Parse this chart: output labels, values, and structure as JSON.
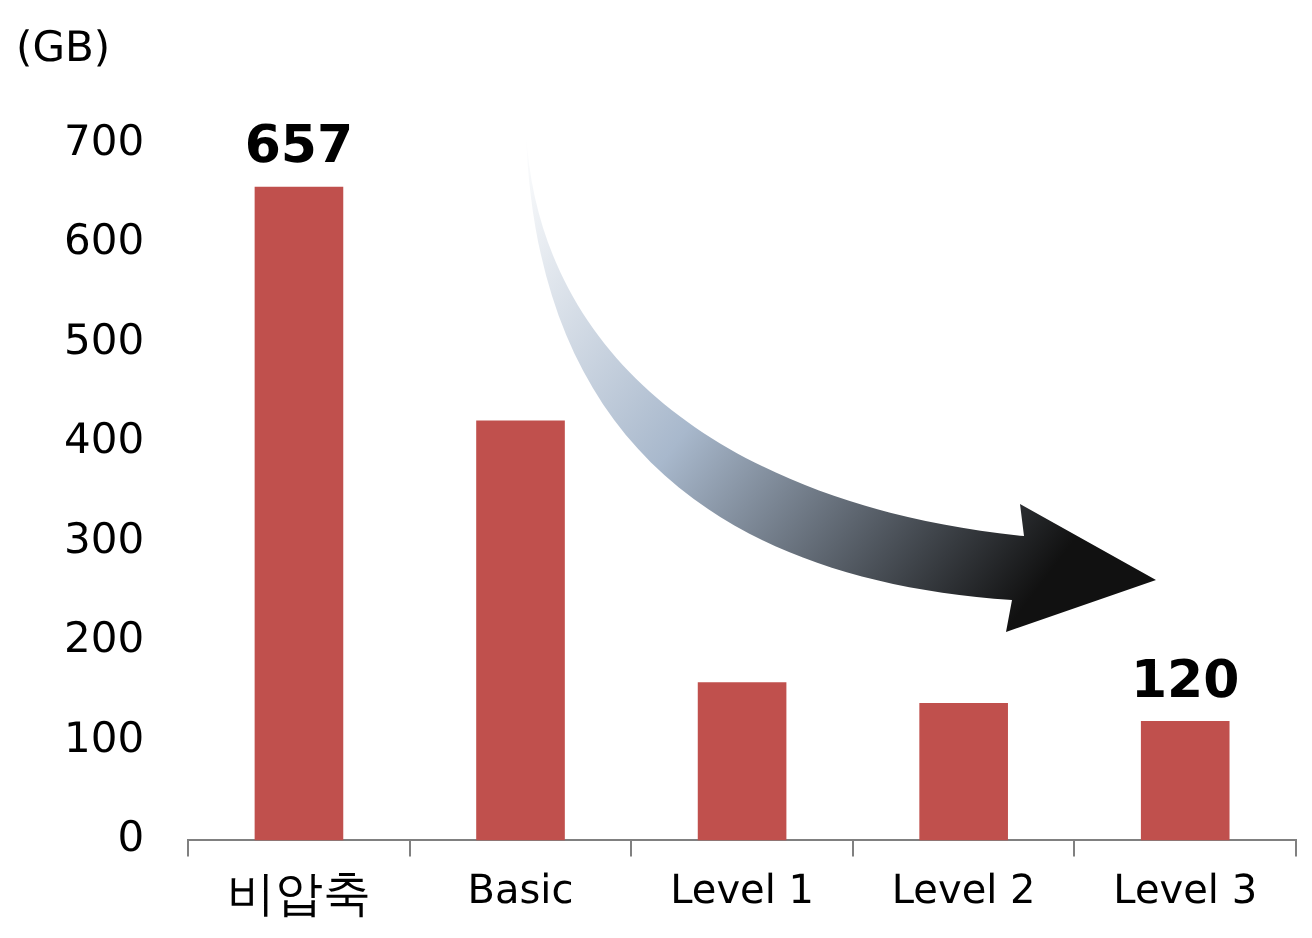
{
  "chart_data": {
    "type": "bar",
    "ylabel": "(GB)",
    "categories": [
      "비압축",
      "Basic",
      "Level 1",
      "Level 2",
      "Level 3"
    ],
    "values": [
      657,
      422,
      159,
      138,
      120
    ],
    "color": "#c0504d",
    "value_labels": [
      "657",
      null,
      null,
      null,
      "120"
    ],
    "ylim": [
      0,
      700
    ],
    "yticks": [
      0,
      100,
      200,
      300,
      400,
      500,
      600,
      700
    ],
    "grid": false,
    "legend": false
  }
}
